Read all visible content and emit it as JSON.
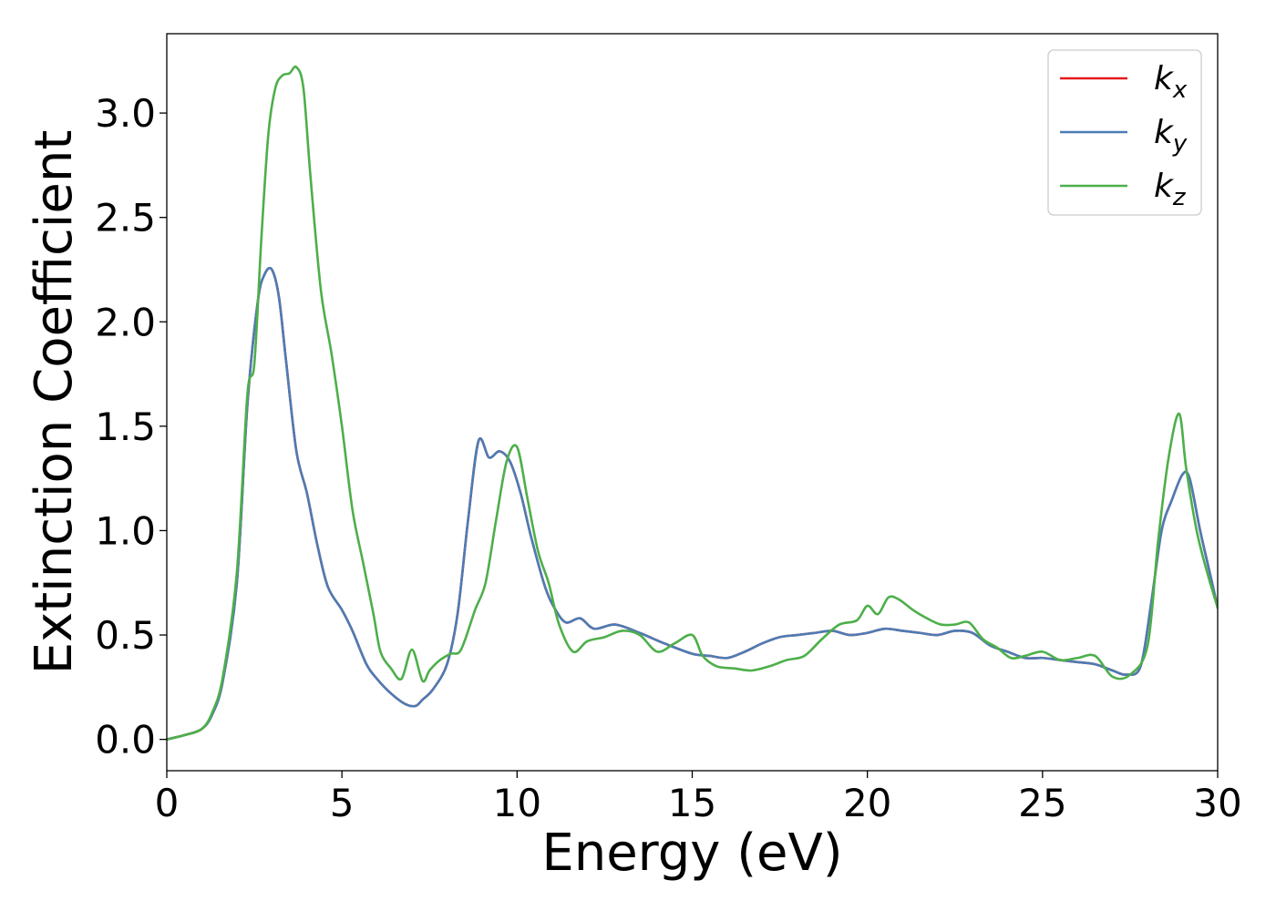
{
  "chart_data": {
    "type": "line",
    "title": "",
    "xlabel": "Energy (eV)",
    "ylabel": "Extinction Coefficient",
    "xlim": [
      0,
      30
    ],
    "ylim": [
      -0.15,
      3.38
    ],
    "xticks": [
      0,
      5,
      10,
      15,
      20,
      25,
      30
    ],
    "xtick_labels": [
      "0",
      "5",
      "10",
      "15",
      "20",
      "25",
      "30"
    ],
    "yticks": [
      0.0,
      0.5,
      1.0,
      1.5,
      2.0,
      2.5,
      3.0
    ],
    "ytick_labels": [
      "0.0",
      "0.5",
      "1.0",
      "1.5",
      "2.0",
      "2.5",
      "3.0"
    ],
    "grid": false,
    "legend_position": "top-right",
    "series": [
      {
        "name": "k_x",
        "label_base": "k",
        "label_sub": "x",
        "color": "#e41a1c",
        "x": [
          0,
          0.5,
          1,
          1.3,
          1.6,
          2.0,
          2.3,
          2.6,
          2.8,
          3.0,
          3.2,
          3.4,
          3.7,
          4.0,
          4.3,
          4.6,
          5.0,
          5.3,
          5.7,
          6.0,
          6.4,
          6.8,
          7.1,
          7.3,
          7.6,
          8.0,
          8.3,
          8.6,
          8.9,
          9.2,
          9.5,
          9.8,
          10.1,
          10.4,
          10.8,
          11.1,
          11.4,
          11.8,
          12.2,
          12.8,
          13.5,
          14.2,
          15.0,
          15.5,
          16.0,
          16.5,
          17.0,
          17.5,
          18.0,
          18.5,
          19.0,
          19.5,
          20.0,
          20.5,
          21.0,
          21.5,
          22.0,
          22.5,
          23.0,
          23.5,
          24.0,
          24.5,
          25.0,
          25.5,
          26.0,
          26.5,
          27.0,
          27.4,
          27.8,
          28.1,
          28.4,
          28.7,
          29.0,
          29.2,
          29.5,
          29.8,
          30.0
        ],
        "y": [
          0.0,
          0.02,
          0.05,
          0.12,
          0.28,
          0.75,
          1.6,
          2.1,
          2.23,
          2.25,
          2.12,
          1.82,
          1.38,
          1.18,
          0.93,
          0.73,
          0.62,
          0.52,
          0.36,
          0.29,
          0.22,
          0.17,
          0.16,
          0.19,
          0.24,
          0.36,
          0.6,
          1.05,
          1.43,
          1.35,
          1.38,
          1.33,
          1.18,
          0.97,
          0.73,
          0.62,
          0.56,
          0.58,
          0.53,
          0.55,
          0.51,
          0.46,
          0.41,
          0.4,
          0.39,
          0.42,
          0.46,
          0.49,
          0.5,
          0.51,
          0.52,
          0.5,
          0.51,
          0.53,
          0.52,
          0.51,
          0.5,
          0.52,
          0.51,
          0.45,
          0.42,
          0.39,
          0.39,
          0.38,
          0.37,
          0.36,
          0.33,
          0.31,
          0.35,
          0.65,
          1.0,
          1.15,
          1.27,
          1.25,
          1.0,
          0.78,
          0.63
        ]
      },
      {
        "name": "k_y",
        "label_base": "k",
        "label_sub": "y",
        "color": "#4c7cb5",
        "x": [
          0,
          0.5,
          1,
          1.3,
          1.6,
          2.0,
          2.3,
          2.6,
          2.8,
          3.0,
          3.2,
          3.4,
          3.7,
          4.0,
          4.3,
          4.6,
          5.0,
          5.3,
          5.7,
          6.0,
          6.4,
          6.8,
          7.1,
          7.3,
          7.6,
          8.0,
          8.3,
          8.6,
          8.9,
          9.2,
          9.5,
          9.8,
          10.1,
          10.4,
          10.8,
          11.1,
          11.4,
          11.8,
          12.2,
          12.8,
          13.5,
          14.2,
          15.0,
          15.5,
          16.0,
          16.5,
          17.0,
          17.5,
          18.0,
          18.5,
          19.0,
          19.5,
          20.0,
          20.5,
          21.0,
          21.5,
          22.0,
          22.5,
          23.0,
          23.5,
          24.0,
          24.5,
          25.0,
          25.5,
          26.0,
          26.5,
          27.0,
          27.4,
          27.8,
          28.1,
          28.4,
          28.7,
          29.0,
          29.2,
          29.5,
          29.8,
          30.0
        ],
        "y": [
          0.0,
          0.02,
          0.05,
          0.12,
          0.28,
          0.75,
          1.6,
          2.1,
          2.23,
          2.25,
          2.12,
          1.82,
          1.38,
          1.18,
          0.93,
          0.73,
          0.62,
          0.52,
          0.36,
          0.29,
          0.22,
          0.17,
          0.16,
          0.19,
          0.24,
          0.36,
          0.6,
          1.05,
          1.43,
          1.35,
          1.38,
          1.33,
          1.18,
          0.97,
          0.73,
          0.62,
          0.56,
          0.58,
          0.53,
          0.55,
          0.51,
          0.46,
          0.41,
          0.4,
          0.39,
          0.42,
          0.46,
          0.49,
          0.5,
          0.51,
          0.52,
          0.5,
          0.51,
          0.53,
          0.52,
          0.51,
          0.5,
          0.52,
          0.51,
          0.45,
          0.42,
          0.39,
          0.39,
          0.38,
          0.37,
          0.36,
          0.33,
          0.31,
          0.35,
          0.65,
          1.0,
          1.15,
          1.27,
          1.25,
          1.0,
          0.78,
          0.63
        ]
      },
      {
        "name": "k_z",
        "label_base": "k",
        "label_sub": "z",
        "color": "#4daf4a",
        "x": [
          0,
          0.5,
          1,
          1.3,
          1.6,
          2.0,
          2.3,
          2.5,
          2.7,
          2.9,
          3.1,
          3.3,
          3.5,
          3.7,
          3.9,
          4.1,
          4.4,
          4.7,
          5.0,
          5.3,
          5.6,
          5.9,
          6.1,
          6.4,
          6.7,
          7.0,
          7.3,
          7.5,
          7.8,
          8.1,
          8.4,
          8.8,
          9.1,
          9.4,
          9.7,
          10.0,
          10.3,
          10.6,
          10.9,
          11.2,
          11.6,
          12.0,
          12.5,
          13.0,
          13.5,
          14.0,
          14.5,
          15.0,
          15.3,
          15.7,
          16.2,
          16.7,
          17.2,
          17.7,
          18.2,
          18.7,
          19.2,
          19.7,
          20.0,
          20.3,
          20.6,
          20.9,
          21.3,
          21.7,
          22.1,
          22.5,
          22.9,
          23.3,
          23.7,
          24.1,
          24.5,
          25.0,
          25.5,
          26.0,
          26.5,
          27.0,
          27.5,
          28.0,
          28.3,
          28.6,
          28.9,
          29.1,
          29.4,
          29.7,
          30.0
        ],
        "y": [
          0.0,
          0.02,
          0.05,
          0.13,
          0.3,
          0.8,
          1.65,
          1.8,
          2.4,
          2.9,
          3.12,
          3.18,
          3.19,
          3.22,
          3.12,
          2.7,
          2.15,
          1.85,
          1.5,
          1.1,
          0.85,
          0.6,
          0.42,
          0.34,
          0.29,
          0.43,
          0.28,
          0.33,
          0.38,
          0.41,
          0.43,
          0.62,
          0.75,
          1.05,
          1.33,
          1.4,
          1.15,
          0.9,
          0.75,
          0.55,
          0.42,
          0.47,
          0.49,
          0.52,
          0.5,
          0.42,
          0.46,
          0.5,
          0.4,
          0.35,
          0.34,
          0.33,
          0.35,
          0.38,
          0.4,
          0.48,
          0.55,
          0.57,
          0.64,
          0.6,
          0.68,
          0.67,
          0.62,
          0.58,
          0.55,
          0.55,
          0.56,
          0.48,
          0.44,
          0.39,
          0.4,
          0.42,
          0.38,
          0.39,
          0.4,
          0.3,
          0.31,
          0.45,
          0.95,
          1.35,
          1.56,
          1.3,
          1.0,
          0.8,
          0.63
        ]
      }
    ]
  }
}
